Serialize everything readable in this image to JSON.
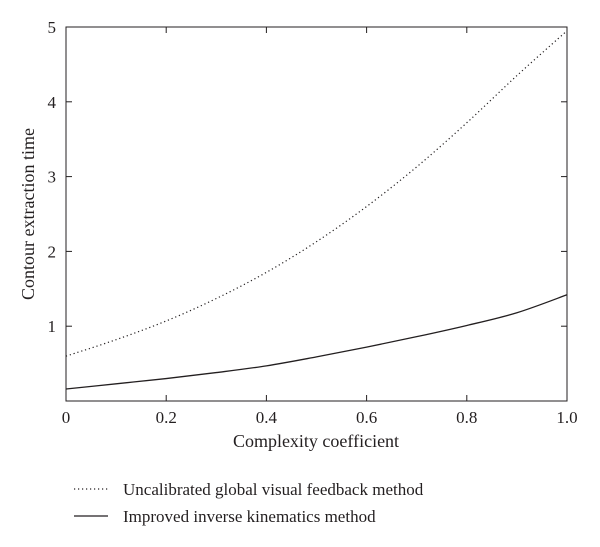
{
  "chart_data": {
    "type": "line",
    "title": "",
    "xlabel": "Complexity coefficient",
    "ylabel": "Contour extraction time",
    "xlim": [
      0,
      1.0
    ],
    "ylim": [
      0,
      5
    ],
    "x_ticks": [
      "0",
      "0.2",
      "0.4",
      "0.6",
      "0.8",
      "1.0"
    ],
    "y_ticks": [
      "1",
      "2",
      "3",
      "4",
      "5"
    ],
    "grid": false,
    "legend_position": "bottom",
    "x": [
      0,
      0.1,
      0.2,
      0.3,
      0.4,
      0.5,
      0.6,
      0.7,
      0.8,
      0.9,
      1.0
    ],
    "series": [
      {
        "name": "Uncalibrated global visual feedback method",
        "style": "dotted",
        "color": "#231f20",
        "values": [
          0.6,
          0.82,
          1.07,
          1.37,
          1.72,
          2.13,
          2.6,
          3.13,
          3.72,
          4.35,
          4.95
        ]
      },
      {
        "name": "Improved inverse kinematics method",
        "style": "solid",
        "color": "#231f20",
        "values": [
          0.16,
          0.23,
          0.3,
          0.38,
          0.47,
          0.59,
          0.72,
          0.86,
          1.01,
          1.18,
          1.42
        ]
      }
    ]
  }
}
